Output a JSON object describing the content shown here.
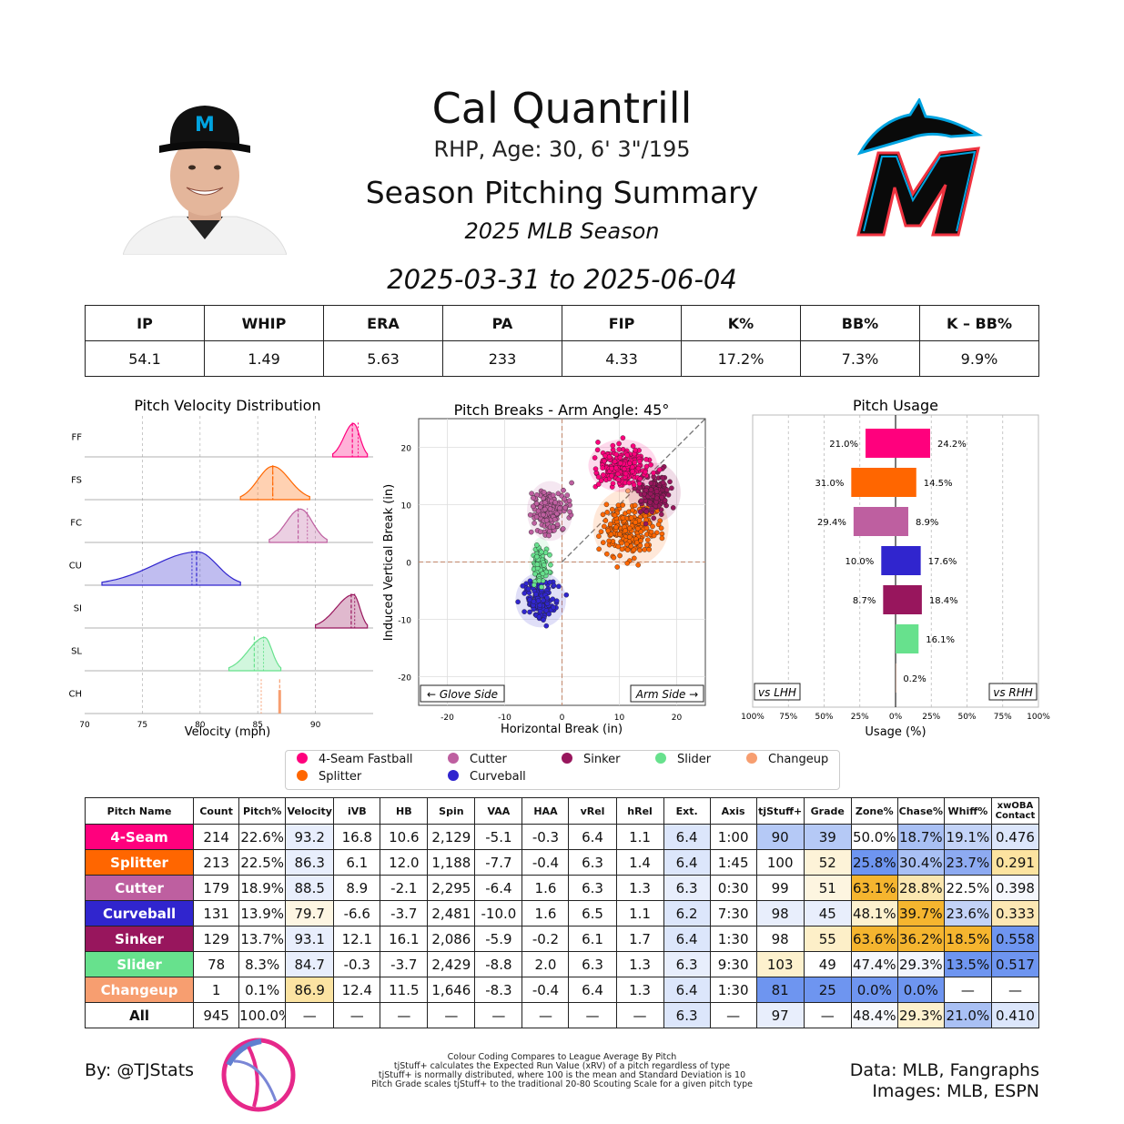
{
  "header": {
    "name": "Cal Quantrill",
    "bio": "RHP, Age: 30, 6' 3\"/195",
    "title": "Season Pitching Summary",
    "season": "2025 MLB Season",
    "date_range": "2025-03-31 to 2025-06-04"
  },
  "stat_line": {
    "headers": [
      "IP",
      "WHIP",
      "ERA",
      "PA",
      "FIP",
      "K%",
      "BB%",
      "K – BB%"
    ],
    "values": [
      "54.1",
      "1.49",
      "5.63",
      "233",
      "4.33",
      "17.2%",
      "7.3%",
      "9.9%"
    ]
  },
  "colors": {
    "FF": "#FF007D",
    "FS": "#FF6600",
    "FC": "#BE5FA0",
    "CU": "#3025CE",
    "SI": "#98165D",
    "SL": "#67E18D",
    "CH": "#F79E70",
    "heat_blue": "#6E95F0",
    "heat_blue_light": "#DCE6FB",
    "heat_orange": "#F5B52F",
    "heat_cream": "#FDF1CE"
  },
  "chart_data": [
    {
      "type": "area",
      "title": "Pitch Velocity Distribution",
      "xlabel": "Velocity (mph)",
      "xlim": [
        70,
        95
      ],
      "xticks": [
        "70",
        "75",
        "80",
        "85",
        "90"
      ],
      "grid": true,
      "series": [
        {
          "name": "FF",
          "range": [
            91.5,
            94.5
          ],
          "peak": 93.3,
          "mean": 93.2,
          "league": 93.7
        },
        {
          "name": "FS",
          "range": [
            83.5,
            89.5
          ],
          "peak": 86.3,
          "mean": 86.3,
          "league": 86.3
        },
        {
          "name": "FC",
          "range": [
            86,
            91
          ],
          "peak": 88.7,
          "mean": 88.5,
          "league": 89.3
        },
        {
          "name": "CU",
          "range": [
            71.5,
            83.5
          ],
          "peak": 79.8,
          "mean": 79.7,
          "league": 79.3
        },
        {
          "name": "SI",
          "range": [
            90,
            94.5
          ],
          "peak": 93.3,
          "mean": 93.1,
          "league": 93.4
        },
        {
          "name": "SL",
          "range": [
            82.5,
            87
          ],
          "peak": 85.6,
          "mean": 84.7,
          "league": 85.5
        },
        {
          "name": "CH",
          "range": [
            86.9,
            86.9
          ],
          "peak": 86.9,
          "mean": 86.9,
          "league": 85.3
        }
      ]
    },
    {
      "type": "scatter",
      "title": "Pitch Breaks - Arm Angle: 45°",
      "xlabel": "Horizontal Break (in)",
      "ylabel": "Induced Vertical Break (in)",
      "xlim": [
        -25,
        25
      ],
      "ylim": [
        -25,
        25
      ],
      "xticks": [
        "-20",
        "-10",
        "0",
        "10",
        "20"
      ],
      "yticks": [
        "20",
        "10",
        "0",
        "-10",
        "-20"
      ],
      "annotations": [
        "← Glove Side",
        "Arm Side →"
      ],
      "clusters": [
        {
          "name": "FF",
          "hb": 10.6,
          "ivb": 16.8,
          "sx": 3.0,
          "sy": 2.3,
          "n": 214
        },
        {
          "name": "FS",
          "hb": 12.0,
          "ivb": 6.1,
          "sx": 3.3,
          "sy": 3.4,
          "n": 213
        },
        {
          "name": "FC",
          "hb": -2.1,
          "ivb": 8.9,
          "sx": 2.0,
          "sy": 2.6,
          "n": 179
        },
        {
          "name": "CU",
          "hb": -3.7,
          "ivb": -6.6,
          "sx": 2.2,
          "sy": 2.4,
          "n": 131
        },
        {
          "name": "SI",
          "hb": 16.1,
          "ivb": 12.1,
          "sx": 2.3,
          "sy": 2.6,
          "n": 129
        },
        {
          "name": "SL",
          "hb": -3.7,
          "ivb": -0.3,
          "sx": 1.0,
          "sy": 2.3,
          "n": 78
        },
        {
          "name": "CH",
          "hb": 11.5,
          "ivb": 12.4,
          "sx": 0,
          "sy": 0,
          "n": 1
        }
      ]
    },
    {
      "type": "bar",
      "title": "Pitch Usage",
      "xlabel": "Usage (%)",
      "xticks": [
        "100%",
        "75%",
        "50%",
        "25%",
        "0%",
        "25%",
        "50%",
        "75%",
        "100%"
      ],
      "annotations": [
        "vs LHH",
        "vs RHH"
      ],
      "series": [
        {
          "name": "FF",
          "lhh": 21.0,
          "rhh": 24.2,
          "lhh_label": "21.0%",
          "rhh_label": "24.2%"
        },
        {
          "name": "FS",
          "lhh": 31.0,
          "rhh": 14.5,
          "lhh_label": "31.0%",
          "rhh_label": "14.5%"
        },
        {
          "name": "FC",
          "lhh": 29.4,
          "rhh": 8.9,
          "lhh_label": "29.4%",
          "rhh_label": "8.9%"
        },
        {
          "name": "CU",
          "lhh": 10.0,
          "rhh": 17.6,
          "lhh_label": "10.0%",
          "rhh_label": "17.6%"
        },
        {
          "name": "SI",
          "lhh": 8.7,
          "rhh": 18.4,
          "lhh_label": "8.7%",
          "rhh_label": "18.4%"
        },
        {
          "name": "SL",
          "lhh": 0,
          "rhh": 16.1,
          "lhh_label": "",
          "rhh_label": "16.1%"
        },
        {
          "name": "CH",
          "lhh": 0,
          "rhh": 0.2,
          "lhh_label": "",
          "rhh_label": "0.2%"
        }
      ]
    }
  ],
  "legend": [
    {
      "label": "4-Seam Fastball",
      "key": "FF"
    },
    {
      "label": "Cutter",
      "key": "FC"
    },
    {
      "label": "Sinker",
      "key": "SI"
    },
    {
      "label": "Slider",
      "key": "SL"
    },
    {
      "label": "Changeup",
      "key": "CH"
    },
    {
      "label": "Splitter",
      "key": "FS"
    },
    {
      "label": "Curveball",
      "key": "CU"
    }
  ],
  "pitch_table": {
    "headers": [
      "Pitch Name",
      "Count",
      "Pitch%",
      "Velocity",
      "iVB",
      "HB",
      "Spin",
      "VAA",
      "HAA",
      "vRel",
      "hRel",
      "Ext.",
      "Axis",
      "tjStuff+",
      "Grade",
      "Zone%",
      "Chase%",
      "Whiff%",
      "xwOBA\nContact"
    ],
    "rows": [
      {
        "key": "FF",
        "cells": [
          "4-Seam",
          "214",
          "22.6%",
          "93.2",
          "16.8",
          "10.6",
          "2,129",
          "-5.1",
          "-0.3",
          "6.4",
          "1.1",
          "6.4",
          "1:00",
          "90",
          "39",
          "50.0%",
          "18.7%",
          "19.1%",
          "0.476"
        ],
        "shades": {
          "3": "#E8EEFC",
          "11": "#DCE6FB",
          "13": "#B5C9F6",
          "14": "#B5C9F6",
          "16": "#A9C0F4",
          "17": "#C3D3F7",
          "18": "#DCE6FB"
        }
      },
      {
        "key": "FS",
        "cells": [
          "Splitter",
          "213",
          "22.5%",
          "86.3",
          "6.1",
          "12.0",
          "1,188",
          "-7.7",
          "-0.4",
          "6.3",
          "1.4",
          "6.4",
          "1:45",
          "100",
          "52",
          "25.8%",
          "30.4%",
          "23.7%",
          "0.291"
        ],
        "shades": {
          "3": "#E8EEFC",
          "11": "#DCE6FB",
          "14": "#FDF3D8",
          "15": "#6E95F0",
          "16": "#A9C0F4",
          "17": "#8DAAF1",
          "18": "#FCE3A0"
        }
      },
      {
        "key": "FC",
        "cells": [
          "Cutter",
          "179",
          "18.9%",
          "88.5",
          "8.9",
          "-2.1",
          "2,295",
          "-6.4",
          "1.6",
          "6.3",
          "1.3",
          "6.3",
          "0:30",
          "99",
          "51",
          "63.1%",
          "28.8%",
          "22.5%",
          "0.398"
        ],
        "shades": {
          "3": "#E8EEFC",
          "11": "#E8EEFC",
          "14": "#FDF5E0",
          "15": "#F5B52F",
          "16": "#FBE7B0",
          "18": "#F5F7FD"
        }
      },
      {
        "key": "CU",
        "cells": [
          "Curveball",
          "131",
          "13.9%",
          "79.7",
          "-6.6",
          "-3.7",
          "2,481",
          "-10.0",
          "1.6",
          "6.5",
          "1.1",
          "6.2",
          "7:30",
          "98",
          "45",
          "48.1%",
          "39.7%",
          "23.6%",
          "0.333"
        ],
        "shades": {
          "3": "#FDF6E3",
          "11": "#DCE6FB",
          "13": "#E8EEFC",
          "14": "#E8EEFC",
          "15": "#FDF1CE",
          "16": "#F5B52F",
          "17": "#C3D3F7",
          "18": "#FCE7B4"
        }
      },
      {
        "key": "SI",
        "cells": [
          "Sinker",
          "129",
          "13.7%",
          "93.1",
          "12.1",
          "16.1",
          "2,086",
          "-5.9",
          "-0.2",
          "6.1",
          "1.7",
          "6.4",
          "1:30",
          "98",
          "55",
          "63.6%",
          "36.2%",
          "18.5%",
          "0.558"
        ],
        "shades": {
          "3": "#E8EEFC",
          "11": "#DCE6FB",
          "14": "#FDEFC8",
          "15": "#F5B52F",
          "16": "#F5B52F",
          "17": "#F5B52F",
          "18": "#6E95F0"
        }
      },
      {
        "key": "SL",
        "cells": [
          "Slider",
          "78",
          "8.3%",
          "84.7",
          "-0.3",
          "-3.7",
          "2,429",
          "-8.8",
          "2.0",
          "6.3",
          "1.3",
          "6.3",
          "9:30",
          "103",
          "49",
          "47.4%",
          "29.3%",
          "13.5%",
          "0.517"
        ],
        "shades": {
          "3": "#E8EEFC",
          "11": "#E8EEFC",
          "13": "#FDF1CE",
          "15": "#F6F8FD",
          "16": "#F3F6FD",
          "17": "#6E95F0",
          "18": "#6E95F0"
        }
      },
      {
        "key": "CH",
        "cells": [
          "Changeup",
          "1",
          "0.1%",
          "86.9",
          "12.4",
          "11.5",
          "1,646",
          "-8.3",
          "-0.4",
          "6.4",
          "1.3",
          "6.4",
          "1:30",
          "81",
          "25",
          "0.0%",
          "0.0%",
          "—",
          "—"
        ],
        "shades": {
          "3": "#FBE3A2",
          "11": "#DCE6FB",
          "13": "#6E95F0",
          "14": "#6E95F0",
          "15": "#6E95F0",
          "16": "#6E95F0"
        }
      },
      {
        "key": "ALL",
        "cells": [
          "All",
          "945",
          "100.0%",
          "—",
          "—",
          "—",
          "—",
          "—",
          "—",
          "—",
          "—",
          "6.3",
          "—",
          "97",
          "—",
          "48.4%",
          "29.3%",
          "21.0%",
          "0.410"
        ],
        "shades": {
          "11": "#DCE6FB",
          "13": "#E8EEFC",
          "15": "#F6F8FD",
          "16": "#FDF1CE",
          "17": "#A9C0F4",
          "18": "#DCE6FB"
        }
      }
    ]
  },
  "footer": {
    "byline": "By: @TJStats",
    "notes": [
      "Colour Coding Compares to League Average By Pitch",
      "tjStuff+ calculates the Expected Run Value (xRV) of a pitch regardless of type",
      "tjStuff+ is normally distributed, where 100 is the mean and Standard Deviation is 10",
      "Pitch Grade scales tjStuff+ to the traditional 20-80 Scouting Scale for a given pitch type"
    ],
    "data_credit": "Data: MLB, Fangraphs",
    "image_credit": "Images: MLB, ESPN"
  }
}
